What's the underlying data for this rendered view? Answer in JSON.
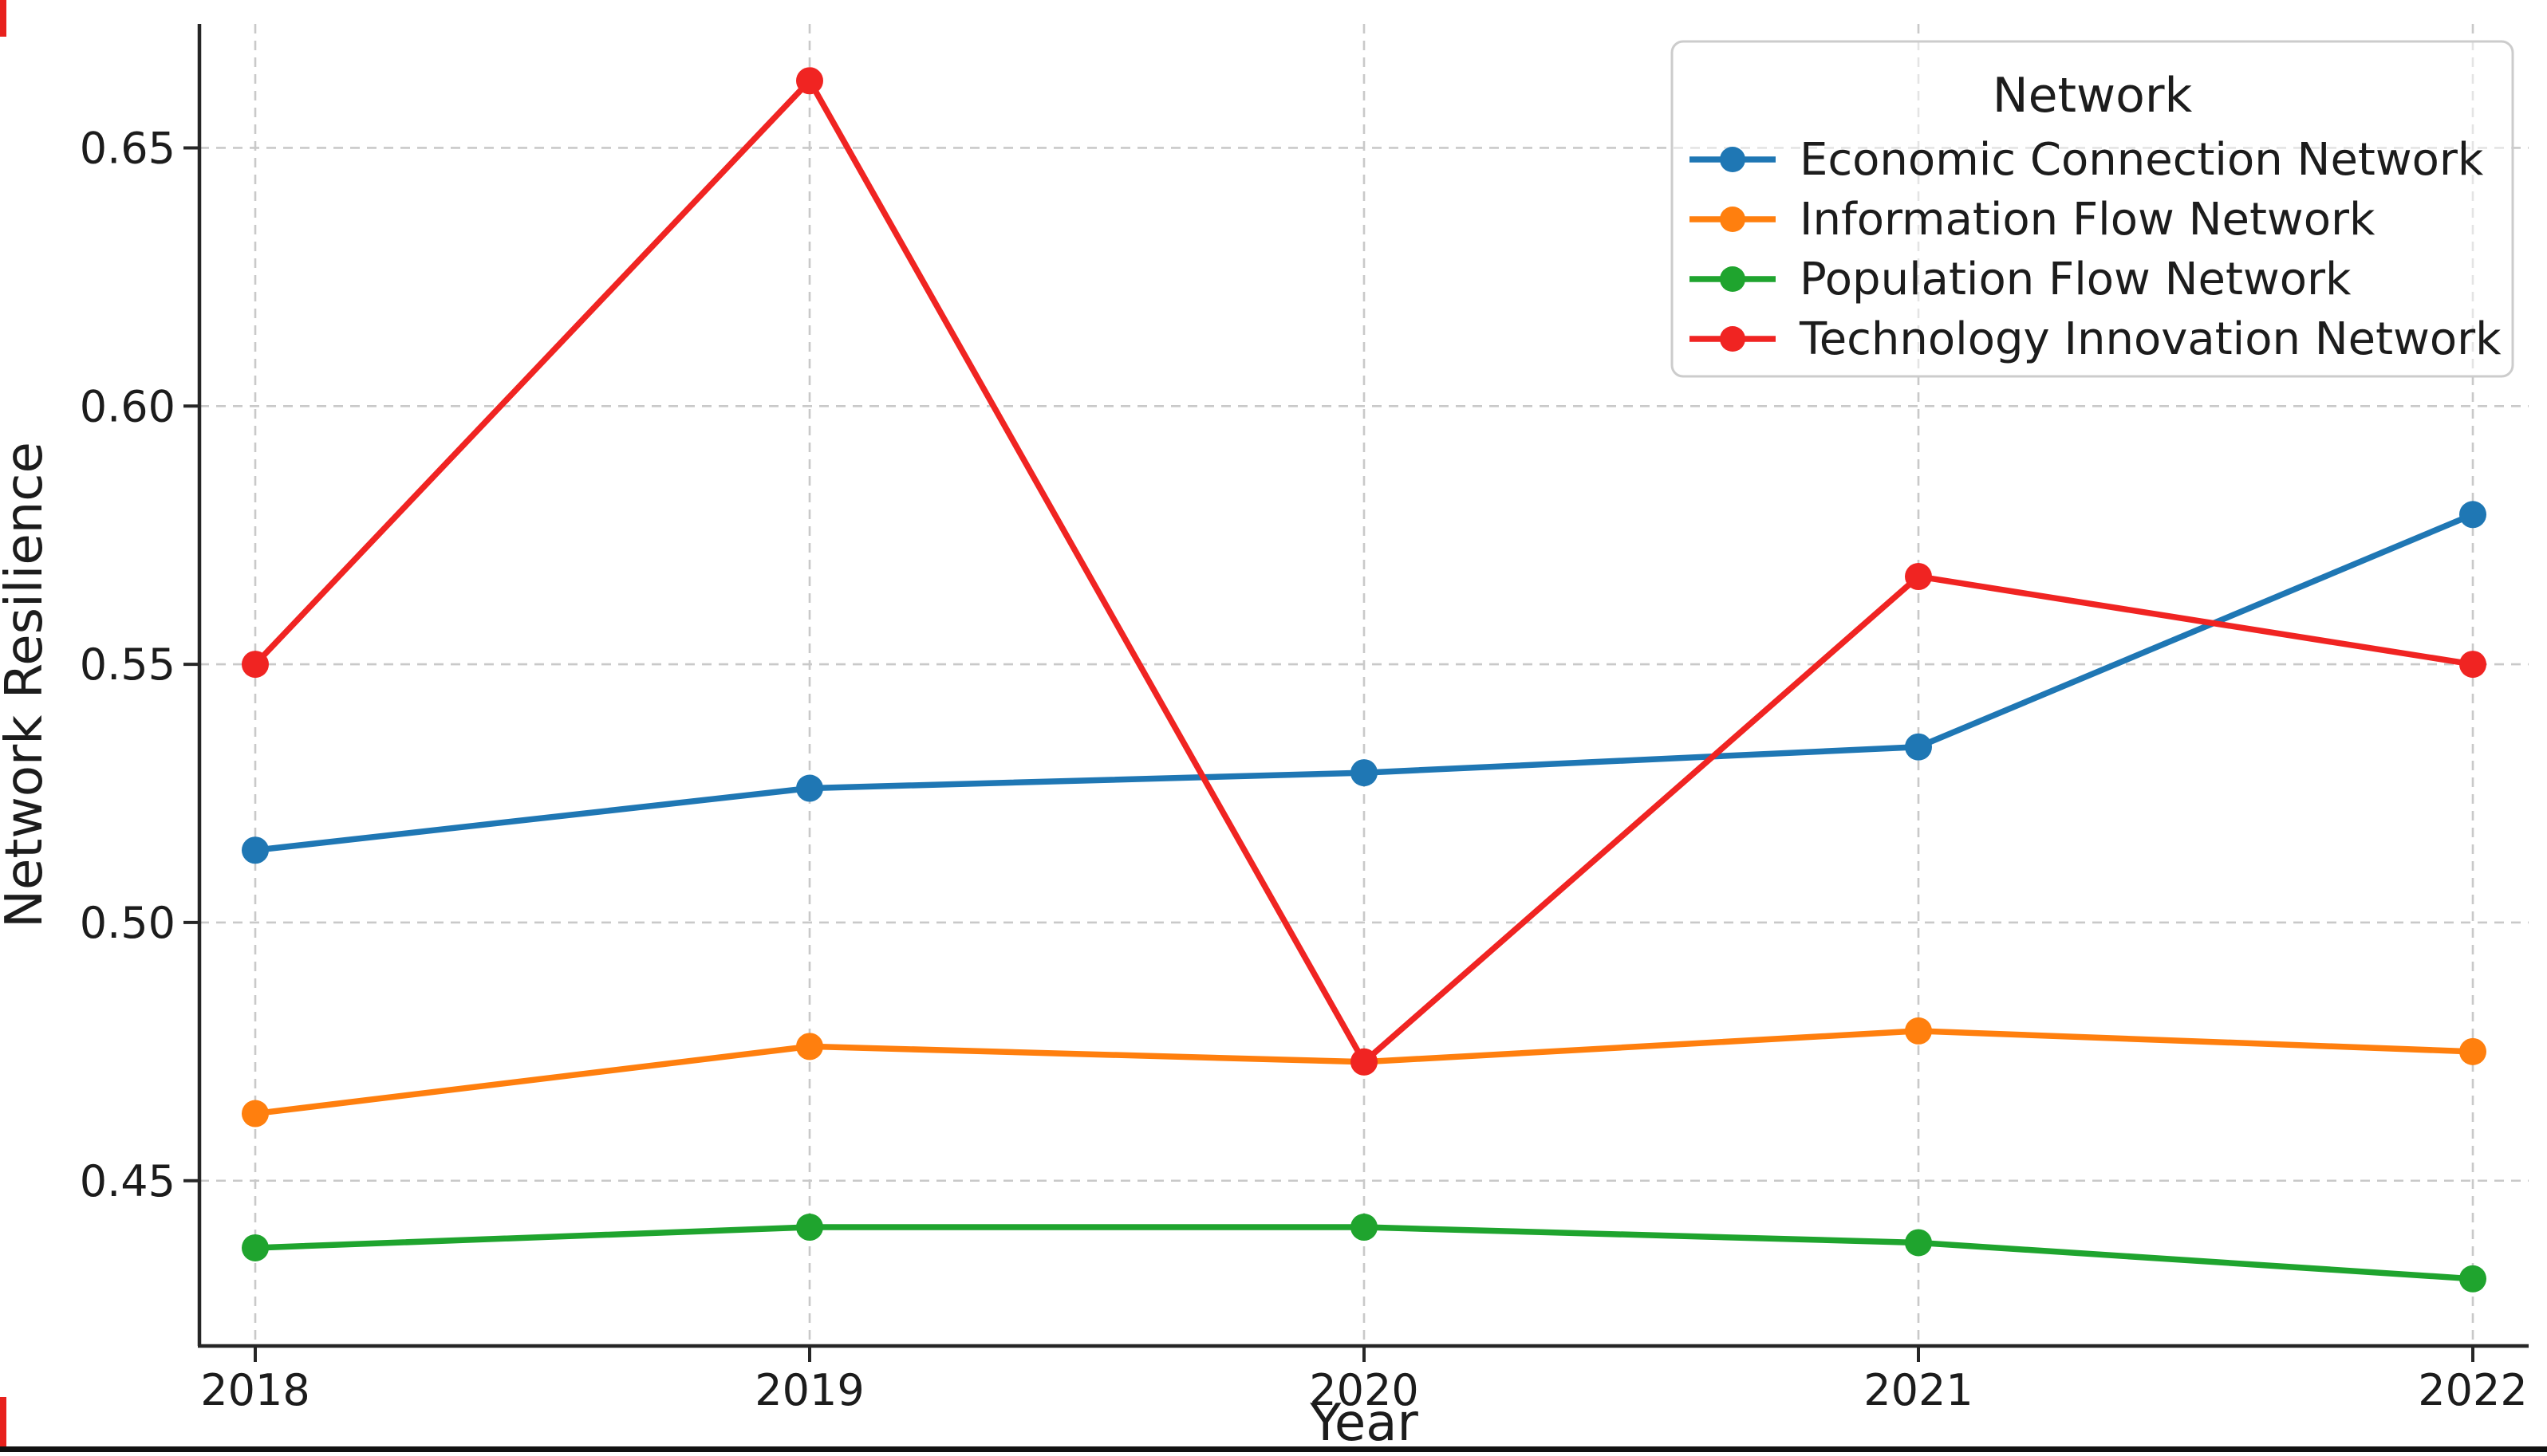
{
  "chart_data": {
    "type": "line",
    "title": "",
    "xlabel": "Year",
    "ylabel": "Network Resilience",
    "categories": [
      "2018",
      "2019",
      "2020",
      "2021",
      "2022"
    ],
    "y_ticks": [
      0.45,
      0.5,
      0.55,
      0.6,
      0.65
    ],
    "y_tick_labels": [
      "0.45",
      "0.50",
      "0.55",
      "0.60",
      "0.65"
    ],
    "ylim": [
      0.418,
      0.674
    ],
    "grid": "both, dashed, light-gray",
    "grid_color": "#c9c9c9",
    "spine_color": "#262626",
    "legend": {
      "title": "Network",
      "position": "upper right"
    },
    "series": [
      {
        "name": "Economic Connection Network",
        "color": "#1f77b4",
        "values": [
          0.514,
          0.526,
          0.529,
          0.534,
          0.579
        ]
      },
      {
        "name": "Information Flow Network",
        "color": "#ff7f0e",
        "values": [
          0.463,
          0.476,
          0.473,
          0.479,
          0.475
        ]
      },
      {
        "name": "Population Flow Network",
        "color": "#1fa42e",
        "values": [
          0.437,
          0.441,
          0.441,
          0.438,
          0.431
        ]
      },
      {
        "name": "Technology Innovation Network",
        "color": "#f02422",
        "values": [
          0.55,
          0.663,
          0.473,
          0.567,
          0.55
        ]
      }
    ]
  }
}
